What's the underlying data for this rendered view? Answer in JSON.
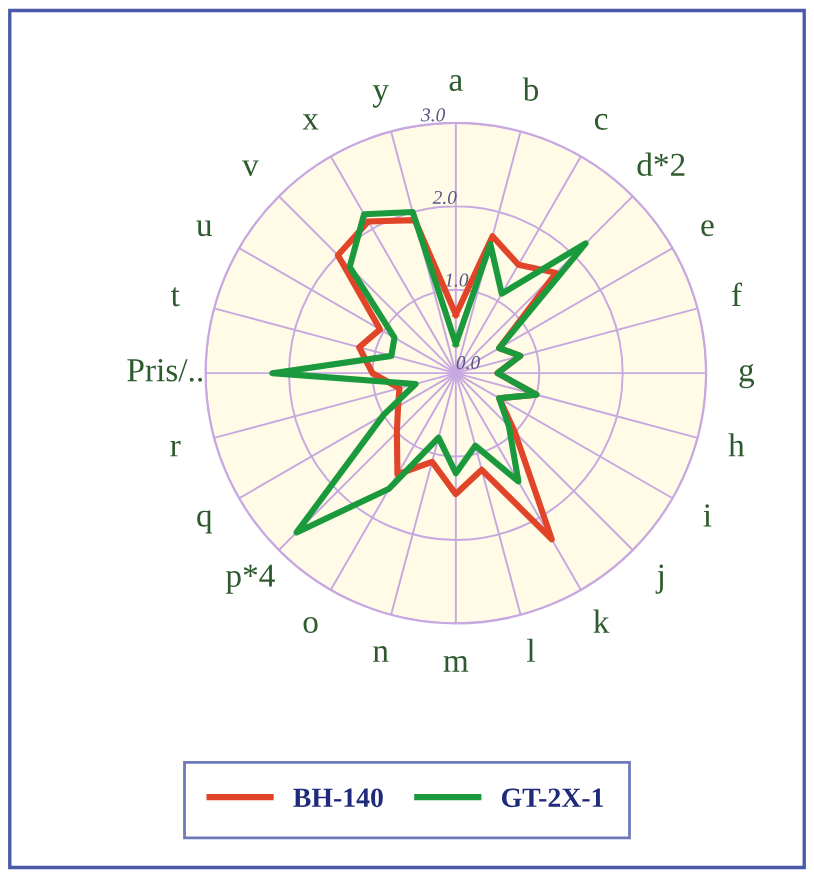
{
  "chart_data": {
    "type": "radar",
    "categories": [
      "a",
      "b",
      "c",
      "d*2",
      "e",
      "f",
      "g",
      "h",
      "i",
      "j",
      "k",
      "l",
      "m",
      "n",
      "o",
      "p*4",
      "q",
      "r",
      "Pris/..",
      "t",
      "u",
      "v",
      "x",
      "y"
    ],
    "ylim": [
      0,
      3
    ],
    "yticks": [
      {
        "value": 0,
        "label": "0.0"
      },
      {
        "value": 1,
        "label": "1.0"
      },
      {
        "value": 2,
        "label": "2.0"
      },
      {
        "value": 3,
        "label": "3.0"
      }
    ],
    "grid": true,
    "legend": "bottom",
    "marker": "none",
    "line_style": "solid",
    "series": [
      {
        "name": "BH-140",
        "color": "#e0452a",
        "values": [
          0.7,
          1.7,
          1.5,
          1.7,
          0.6,
          0.8,
          0.5,
          1.0,
          0.6,
          1.0,
          2.3,
          1.2,
          1.45,
          1.1,
          1.4,
          1.0,
          0.8,
          0.7,
          1.0,
          1.2,
          1.05,
          2.0,
          2.1,
          1.9
        ]
      },
      {
        "name": "GT-2X-1",
        "color": "#1a9a3c",
        "values": [
          0.35,
          1.6,
          1.1,
          2.2,
          0.6,
          0.8,
          0.5,
          1.0,
          0.6,
          0.9,
          1.5,
          0.9,
          1.2,
          0.8,
          1.6,
          2.7,
          1.0,
          0.5,
          2.2,
          0.8,
          0.85,
          1.8,
          2.2,
          2.0
        ]
      }
    ]
  }
}
